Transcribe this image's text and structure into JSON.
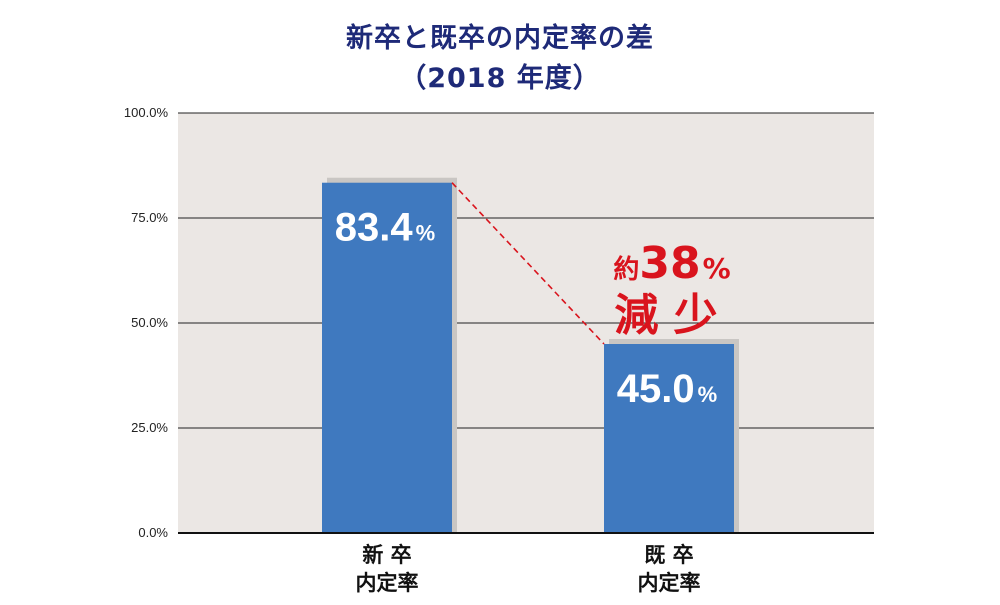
{
  "title_line1": "新卒と既卒の内定率の差",
  "title_line2": "（2018 年度）",
  "chart_data": {
    "type": "bar",
    "categories": [
      [
        "新 卒",
        "内定率"
      ],
      [
        "既 卒",
        "内定率"
      ]
    ],
    "values": [
      83.4,
      45.0
    ],
    "value_labels": [
      "83.4",
      "45.0"
    ],
    "value_unit": "%",
    "ylim": [
      0,
      100
    ],
    "yticks": [
      "0.0%",
      "25.0%",
      "50.0%",
      "75.0%",
      "100.0%"
    ],
    "grid": true,
    "annotation": {
      "prefix": "約",
      "number": "38",
      "unit": "%",
      "line2": "減 少"
    }
  },
  "colors": {
    "bar": "#3f79bf",
    "bar_shadow": "#c9c6c3",
    "plot_bg": "#ebe7e4",
    "accent": "#d9141d",
    "title": "#1e2a78"
  }
}
